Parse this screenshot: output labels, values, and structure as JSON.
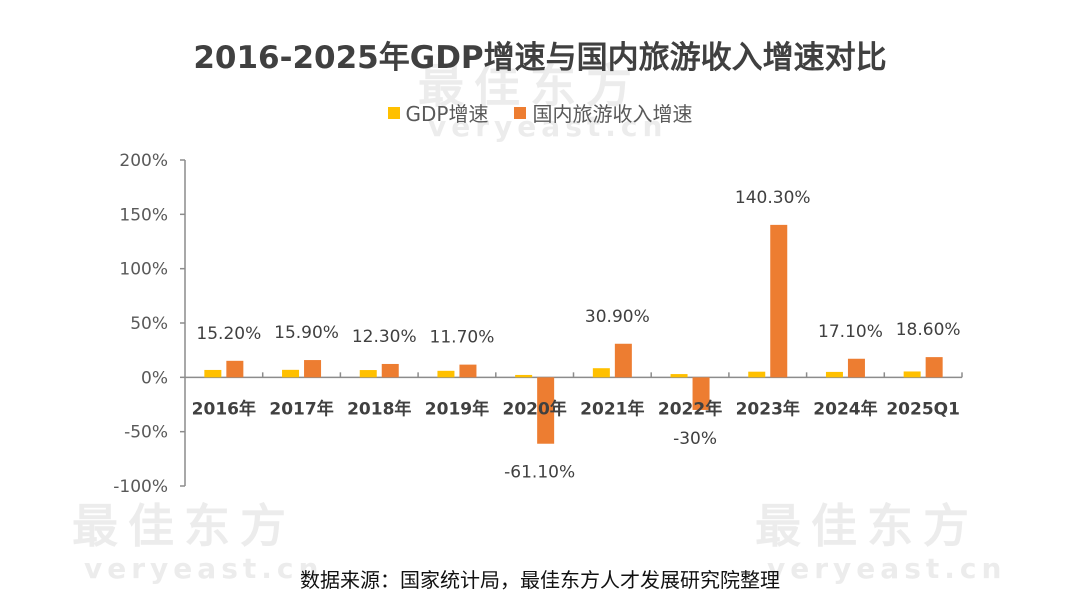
{
  "title": "2016-2025年GDP增速与国内旅游收入增速对比",
  "footer": "数据来源：国家统计局，最佳东方人才发展研究院整理",
  "watermark": {
    "cn": "最佳东方",
    "en": "veryeast.cn"
  },
  "legend": [
    {
      "label": "GDP增速",
      "color": "#FFC000"
    },
    {
      "label": "国内旅游收入增速",
      "color": "#ED7D31"
    }
  ],
  "chart_data": {
    "type": "bar",
    "title": "2016-2025年GDP增速与国内旅游收入增速对比",
    "xlabel": "",
    "ylabel": "",
    "categories": [
      "2016年",
      "2017年",
      "2018年",
      "2019年",
      "2020年",
      "2021年",
      "2022年",
      "2023年",
      "2024年",
      "2025Q1"
    ],
    "series": [
      {
        "name": "GDP增速",
        "color": "#FFC000",
        "values": [
          6.8,
          6.9,
          6.7,
          6.0,
          2.2,
          8.4,
          3.0,
          5.2,
          5.0,
          5.4
        ],
        "labels": null
      },
      {
        "name": "国内旅游收入增速",
        "color": "#ED7D31",
        "values": [
          15.2,
          15.9,
          12.3,
          11.7,
          -61.1,
          30.9,
          -30.0,
          140.3,
          17.1,
          18.6
        ],
        "labels": [
          "15.20%",
          "15.90%",
          "12.30%",
          "11.70%",
          "-61.10%",
          "30.90%",
          "-30%",
          "140.30%",
          "17.10%",
          "18.60%"
        ]
      }
    ],
    "ylim": [
      -100,
      200
    ],
    "yticks": [
      200,
      150,
      100,
      50,
      0,
      -50,
      -100
    ],
    "ytick_labels": [
      "200%",
      "150%",
      "100%",
      "50%",
      "0%",
      "-50%",
      "-100%"
    ],
    "grid": false,
    "legend_position": "top-center"
  }
}
